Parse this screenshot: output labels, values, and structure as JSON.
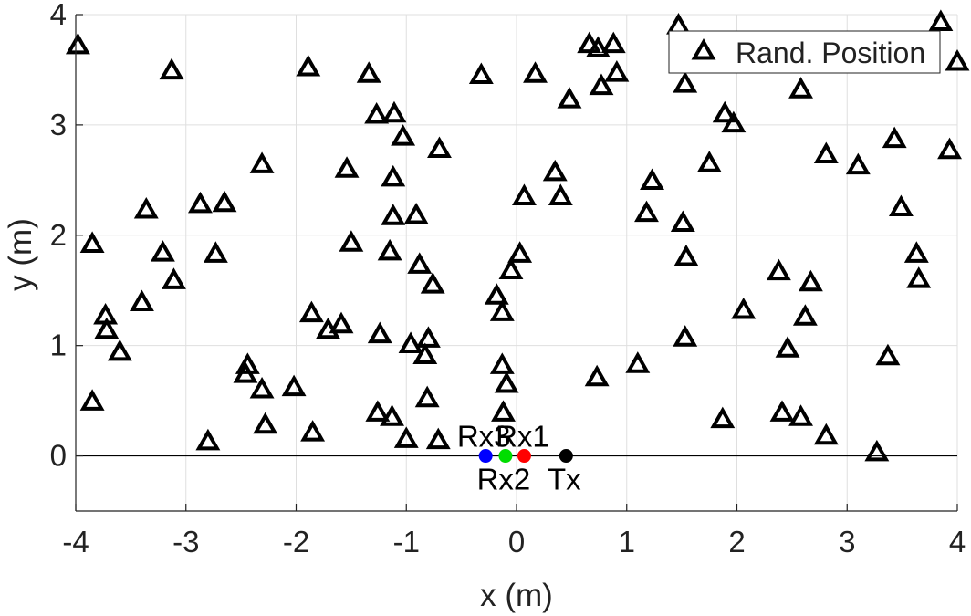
{
  "chart_data": {
    "type": "scatter",
    "title": "",
    "xlabel": "x (m)",
    "ylabel": "y (m)",
    "xlim": [
      -4,
      4
    ],
    "ylim": [
      -0.5,
      4
    ],
    "xticks": [
      -4,
      -3,
      -2,
      -1,
      0,
      1,
      2,
      3,
      4
    ],
    "yticks": [
      0,
      1,
      2,
      3,
      4
    ],
    "grid": true,
    "legend": {
      "position": "top-right",
      "entries": [
        "Rand. Position"
      ]
    },
    "reference_line": {
      "y": 0
    },
    "series": [
      {
        "name": "Rand. Position",
        "marker": "triangle",
        "color": "#000000",
        "points": [
          [
            -3.98,
            3.72
          ],
          [
            -3.13,
            3.49
          ],
          [
            -1.89,
            3.52
          ],
          [
            -1.34,
            3.46
          ],
          [
            -0.32,
            3.45
          ],
          [
            0.17,
            3.46
          ],
          [
            0.48,
            3.23
          ],
          [
            0.66,
            3.73
          ],
          [
            0.74,
            3.69
          ],
          [
            0.88,
            3.73
          ],
          [
            0.91,
            3.47
          ],
          [
            0.77,
            3.35
          ],
          [
            1.47,
            3.9
          ],
          [
            1.53,
            3.37
          ],
          [
            3.85,
            3.93
          ],
          [
            4.0,
            3.57
          ],
          [
            2.58,
            3.32
          ],
          [
            -1.27,
            3.09
          ],
          [
            -1.11,
            3.1
          ],
          [
            -1.03,
            2.89
          ],
          [
            -0.7,
            2.78
          ],
          [
            -2.31,
            2.64
          ],
          [
            -1.54,
            2.6
          ],
          [
            -1.12,
            2.52
          ],
          [
            -1.12,
            2.17
          ],
          [
            -0.91,
            2.18
          ],
          [
            0.07,
            2.35
          ],
          [
            0.35,
            2.57
          ],
          [
            0.4,
            2.35
          ],
          [
            1.23,
            2.49
          ],
          [
            1.18,
            2.2
          ],
          [
            1.51,
            2.11
          ],
          [
            1.75,
            2.65
          ],
          [
            1.89,
            3.1
          ],
          [
            1.97,
            3.01
          ],
          [
            2.81,
            2.73
          ],
          [
            3.1,
            2.63
          ],
          [
            3.43,
            2.87
          ],
          [
            3.49,
            2.25
          ],
          [
            3.93,
            2.77
          ],
          [
            -3.36,
            2.23
          ],
          [
            -2.87,
            2.28
          ],
          [
            -2.65,
            2.29
          ],
          [
            -3.85,
            1.92
          ],
          [
            -3.21,
            1.84
          ],
          [
            -2.73,
            1.83
          ],
          [
            -3.11,
            1.59
          ],
          [
            -1.5,
            1.93
          ],
          [
            -1.15,
            1.85
          ],
          [
            -0.88,
            1.73
          ],
          [
            -0.76,
            1.55
          ],
          [
            0.03,
            1.83
          ],
          [
            -0.05,
            1.68
          ],
          [
            1.54,
            1.8
          ],
          [
            2.38,
            1.67
          ],
          [
            2.67,
            1.57
          ],
          [
            3.63,
            1.83
          ],
          [
            3.65,
            1.6
          ],
          [
            -3.73,
            1.27
          ],
          [
            -3.72,
            1.14
          ],
          [
            -3.6,
            0.94
          ],
          [
            -3.4,
            1.39
          ],
          [
            -1.86,
            1.29
          ],
          [
            -1.71,
            1.14
          ],
          [
            -1.59,
            1.19
          ],
          [
            -1.24,
            1.1
          ],
          [
            -0.96,
            1.01
          ],
          [
            -0.8,
            1.06
          ],
          [
            -0.83,
            0.91
          ],
          [
            -0.18,
            1.45
          ],
          [
            -0.13,
            1.3
          ],
          [
            0.73,
            0.71
          ],
          [
            1.1,
            0.83
          ],
          [
            1.53,
            1.07
          ],
          [
            2.06,
            1.32
          ],
          [
            2.46,
            0.97
          ],
          [
            2.62,
            1.26
          ],
          [
            3.37,
            0.9
          ],
          [
            -2.44,
            0.82
          ],
          [
            -2.46,
            0.74
          ],
          [
            -2.31,
            0.6
          ],
          [
            -2.02,
            0.62
          ],
          [
            -0.81,
            0.52
          ],
          [
            -0.13,
            0.82
          ],
          [
            -0.09,
            0.65
          ],
          [
            -3.85,
            0.49
          ],
          [
            -2.8,
            0.13
          ],
          [
            -2.28,
            0.28
          ],
          [
            -1.85,
            0.21
          ],
          [
            -1.26,
            0.39
          ],
          [
            -1.13,
            0.35
          ],
          [
            -1.0,
            0.15
          ],
          [
            -0.71,
            0.14
          ],
          [
            -0.12,
            0.39
          ],
          [
            1.87,
            0.33
          ],
          [
            2.41,
            0.39
          ],
          [
            2.58,
            0.35
          ],
          [
            2.81,
            0.18
          ],
          [
            3.27,
            0.03
          ]
        ]
      },
      {
        "name": "Rx3",
        "marker": "circle",
        "color": "#0000ff",
        "points": [
          [
            -0.28,
            0
          ]
        ]
      },
      {
        "name": "Rx2",
        "marker": "circle",
        "color": "#00dd00",
        "points": [
          [
            -0.1,
            0
          ]
        ]
      },
      {
        "name": "Rx1",
        "marker": "circle",
        "color": "#ff0000",
        "points": [
          [
            0.07,
            0
          ]
        ]
      },
      {
        "name": "Tx",
        "marker": "circle",
        "color": "#000000",
        "points": [
          [
            0.45,
            0
          ]
        ]
      }
    ]
  }
}
